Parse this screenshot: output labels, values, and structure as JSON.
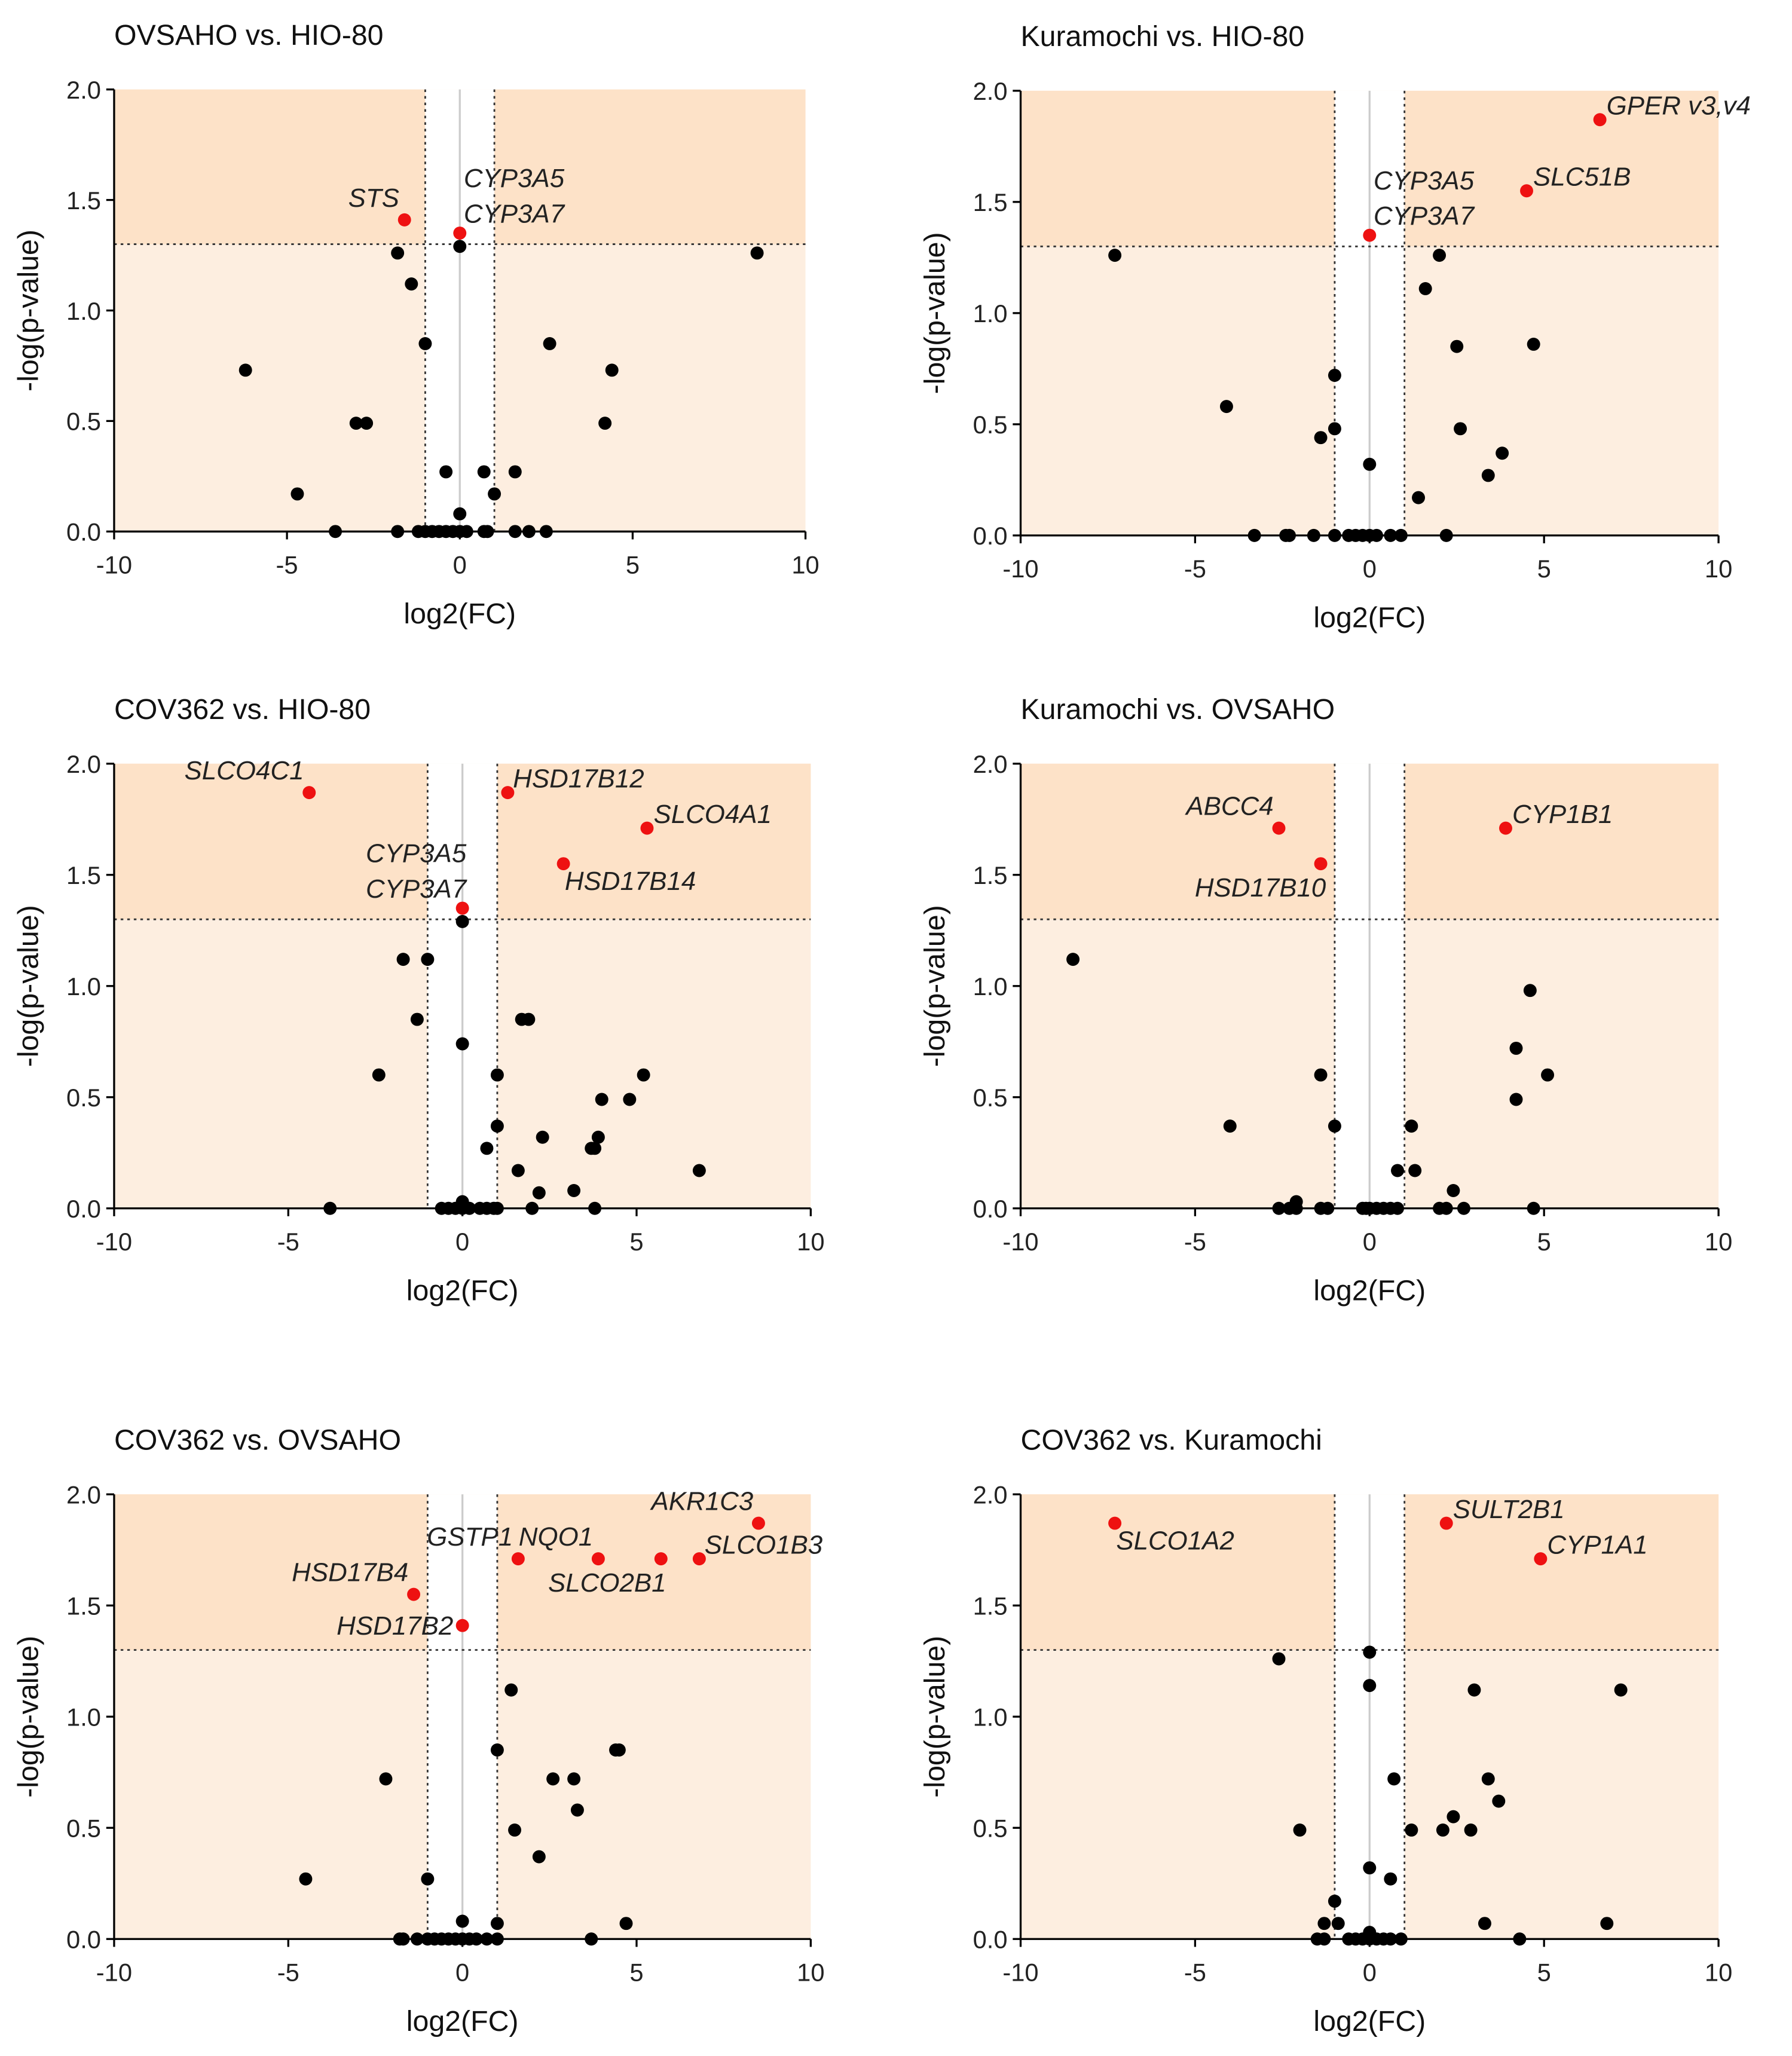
{
  "colors": {
    "significant_region": "#fde2c8",
    "nonsignificant_region": "#fdeee0",
    "significant_point": "#ee1111",
    "point": "#000000",
    "zero_line": "#cccccc"
  },
  "chart_data": [
    {
      "type": "scatter",
      "title": "OVSAHO vs. HIO-80",
      "xlabel": "log2(FC)",
      "ylabel": "-log(p-value)",
      "xlim": [
        -10,
        10
      ],
      "ylim": [
        0,
        2
      ],
      "xticks": [
        "-10",
        "-5",
        "0",
        "5",
        "10"
      ],
      "yticks": [
        "0.0",
        "0.5",
        "1.0",
        "1.5",
        "2.0"
      ],
      "thresholds": {
        "fc": 1,
        "p": 1.3
      },
      "significant": [
        {
          "x": -1.6,
          "y": 1.41,
          "labels": [
            {
              "text": "STS",
              "pos": "above-left"
            }
          ]
        },
        {
          "x": 0,
          "y": 1.35,
          "labels": [
            {
              "text": "CYP3A5",
              "pos": "stack-top-right"
            },
            {
              "text": "CYP3A7",
              "pos": "stack-bottom-right"
            }
          ]
        }
      ],
      "points": [
        [
          -1.8,
          1.26
        ],
        [
          0,
          1.29
        ],
        [
          8.6,
          1.26
        ],
        [
          -1.4,
          1.12
        ],
        [
          -1.0,
          0.85
        ],
        [
          2.6,
          0.85
        ],
        [
          -6.2,
          0.73
        ],
        [
          4.4,
          0.73
        ],
        [
          -3.0,
          0.49
        ],
        [
          -2.7,
          0.49
        ],
        [
          4.2,
          0.49
        ],
        [
          -0.4,
          0.27
        ],
        [
          0.7,
          0.27
        ],
        [
          1.6,
          0.27
        ],
        [
          -4.7,
          0.17
        ],
        [
          1.0,
          0.17
        ],
        [
          0,
          0.08
        ],
        [
          -3.6,
          0
        ],
        [
          -1.8,
          0
        ],
        [
          -1.2,
          0
        ],
        [
          -1.0,
          0
        ],
        [
          -0.8,
          0
        ],
        [
          -0.6,
          0
        ],
        [
          -0.4,
          0
        ],
        [
          -0.2,
          0
        ],
        [
          0,
          0
        ],
        [
          0.2,
          0
        ],
        [
          0.7,
          0
        ],
        [
          0.8,
          0
        ],
        [
          1.6,
          0
        ],
        [
          2.0,
          0
        ],
        [
          2.5,
          0
        ]
      ]
    },
    {
      "type": "scatter",
      "title": "Kuramochi vs. HIO-80",
      "xlabel": "log2(FC)",
      "ylabel": "-log(p-value)",
      "xlim": [
        -10,
        10
      ],
      "ylim": [
        0,
        2
      ],
      "xticks": [
        "-10",
        "-5",
        "0",
        "5",
        "10"
      ],
      "yticks": [
        "0.0",
        "0.5",
        "1.0",
        "1.5",
        "2.0"
      ],
      "thresholds": {
        "fc": 1,
        "p": 1.3
      },
      "significant": [
        {
          "x": 6.6,
          "y": 1.87,
          "labels": [
            {
              "text": "GPER v3,v4",
              "pos": "above-right"
            }
          ]
        },
        {
          "x": 4.5,
          "y": 1.55,
          "labels": [
            {
              "text": "SLC51B",
              "pos": "above-right"
            }
          ]
        },
        {
          "x": 0,
          "y": 1.35,
          "labels": [
            {
              "text": "CYP3A5",
              "pos": "stack-top-right"
            },
            {
              "text": "CYP3A7",
              "pos": "stack-bottom-right"
            }
          ]
        }
      ],
      "points": [
        [
          -7.3,
          1.26
        ],
        [
          2.0,
          1.26
        ],
        [
          1.6,
          1.11
        ],
        [
          2.5,
          0.85
        ],
        [
          4.7,
          0.86
        ],
        [
          -1.0,
          0.72
        ],
        [
          -4.1,
          0.58
        ],
        [
          -1.0,
          0.48
        ],
        [
          2.6,
          0.48
        ],
        [
          -1.4,
          0.44
        ],
        [
          3.8,
          0.37
        ],
        [
          0,
          0.32
        ],
        [
          3.4,
          0.27
        ],
        [
          1.4,
          0.17
        ],
        [
          -3.3,
          0
        ],
        [
          -2.4,
          0
        ],
        [
          -2.3,
          0
        ],
        [
          -1.6,
          0
        ],
        [
          -1.0,
          0
        ],
        [
          -0.6,
          0
        ],
        [
          -0.4,
          0
        ],
        [
          -0.2,
          0
        ],
        [
          0,
          0
        ],
        [
          0.2,
          0
        ],
        [
          0.6,
          0
        ],
        [
          0.9,
          0
        ],
        [
          2.2,
          0
        ]
      ]
    },
    {
      "type": "scatter",
      "title": "COV362 vs. HIO-80",
      "xlabel": "log2(FC)",
      "ylabel": "-log(p-value)",
      "xlim": [
        -10,
        10
      ],
      "ylim": [
        0,
        2
      ],
      "xticks": [
        "-10",
        "-5",
        "0",
        "5",
        "10"
      ],
      "yticks": [
        "0.0",
        "0.5",
        "1.0",
        "1.5",
        "2.0"
      ],
      "thresholds": {
        "fc": 1,
        "p": 1.3
      },
      "significant": [
        {
          "x": -4.4,
          "y": 1.87,
          "labels": [
            {
              "text": "SLCO4C1",
              "pos": "above-left"
            }
          ]
        },
        {
          "x": 1.3,
          "y": 1.87,
          "labels": [
            {
              "text": "HSD17B12",
              "pos": "right"
            }
          ]
        },
        {
          "x": 5.3,
          "y": 1.71,
          "labels": [
            {
              "text": "SLCO4A1",
              "pos": "above-right"
            }
          ]
        },
        {
          "x": 2.9,
          "y": 1.55,
          "labels": [
            {
              "text": "HSD17B14",
              "pos": "below-right"
            }
          ]
        },
        {
          "x": 0,
          "y": 1.35,
          "labels": [
            {
              "text": "CYP3A5",
              "pos": "stack-top-left"
            },
            {
              "text": "CYP3A7",
              "pos": "stack-bottom-left"
            }
          ]
        }
      ],
      "points": [
        [
          0,
          1.29
        ],
        [
          -1.7,
          1.12
        ],
        [
          -1.0,
          1.12
        ],
        [
          -1.3,
          0.85
        ],
        [
          1.7,
          0.85
        ],
        [
          1.9,
          0.85
        ],
        [
          0,
          0.74
        ],
        [
          -2.4,
          0.6
        ],
        [
          1.0,
          0.6
        ],
        [
          5.2,
          0.6
        ],
        [
          4.0,
          0.49
        ],
        [
          4.8,
          0.49
        ],
        [
          1.0,
          0.37
        ],
        [
          2.3,
          0.32
        ],
        [
          3.9,
          0.32
        ],
        [
          0.7,
          0.27
        ],
        [
          3.8,
          0.27
        ],
        [
          3.7,
          0.27
        ],
        [
          1.6,
          0.17
        ],
        [
          6.8,
          0.17
        ],
        [
          3.2,
          0.08
        ],
        [
          2.2,
          0.07
        ],
        [
          0,
          0.03
        ],
        [
          -3.8,
          0
        ],
        [
          -0.6,
          0
        ],
        [
          -0.4,
          0
        ],
        [
          -0.2,
          0
        ],
        [
          0,
          0
        ],
        [
          0.2,
          0
        ],
        [
          0.5,
          0
        ],
        [
          0.7,
          0
        ],
        [
          0.9,
          0
        ],
        [
          1.0,
          0
        ],
        [
          2.0,
          0
        ],
        [
          3.8,
          0
        ]
      ]
    },
    {
      "type": "scatter",
      "title": "Kuramochi vs. OVSAHO",
      "xlabel": "log2(FC)",
      "ylabel": "-log(p-value)",
      "xlim": [
        -10,
        10
      ],
      "ylim": [
        0,
        2
      ],
      "xticks": [
        "-10",
        "-5",
        "0",
        "5",
        "10"
      ],
      "yticks": [
        "0.0",
        "0.5",
        "1.0",
        "1.5",
        "2.0"
      ],
      "thresholds": {
        "fc": 1,
        "p": 1.3
      },
      "significant": [
        {
          "x": -2.6,
          "y": 1.71,
          "labels": [
            {
              "text": "ABCC4",
              "pos": "above-left"
            }
          ]
        },
        {
          "x": -1.4,
          "y": 1.55,
          "labels": [
            {
              "text": "HSD17B10",
              "pos": "below-left"
            }
          ]
        },
        {
          "x": 3.9,
          "y": 1.71,
          "labels": [
            {
              "text": "CYP1B1",
              "pos": "above-right"
            }
          ]
        }
      ],
      "points": [
        [
          -8.5,
          1.12
        ],
        [
          4.6,
          0.98
        ],
        [
          4.2,
          0.72
        ],
        [
          -1.4,
          0.6
        ],
        [
          5.1,
          0.6
        ],
        [
          4.2,
          0.49
        ],
        [
          -4.0,
          0.37
        ],
        [
          -1.0,
          0.37
        ],
        [
          1.2,
          0.37
        ],
        [
          0.8,
          0.17
        ],
        [
          1.3,
          0.17
        ],
        [
          2.4,
          0.08
        ],
        [
          -2.1,
          0.03
        ],
        [
          -2.6,
          0
        ],
        [
          -2.3,
          0
        ],
        [
          -2.1,
          0
        ],
        [
          -1.4,
          0
        ],
        [
          -1.2,
          0
        ],
        [
          -0.2,
          0
        ],
        [
          -0.1,
          0
        ],
        [
          0,
          0
        ],
        [
          0.2,
          0
        ],
        [
          0.4,
          0
        ],
        [
          0.6,
          0
        ],
        [
          0.8,
          0
        ],
        [
          2.0,
          0
        ],
        [
          2.2,
          0
        ],
        [
          2.7,
          0
        ],
        [
          4.7,
          0
        ]
      ]
    },
    {
      "type": "scatter",
      "title": "COV362 vs. OVSAHO",
      "xlabel": "log2(FC)",
      "ylabel": "-log(p-value)",
      "xlim": [
        -10,
        10
      ],
      "ylim": [
        0,
        2
      ],
      "xticks": [
        "-10",
        "-5",
        "0",
        "5",
        "10"
      ],
      "yticks": [
        "0.0",
        "0.5",
        "1.0",
        "1.5",
        "2.0"
      ],
      "thresholds": {
        "fc": 1,
        "p": 1.3
      },
      "significant": [
        {
          "x": 8.5,
          "y": 1.87,
          "labels": [
            {
              "text": "AKR1C3",
              "pos": "above-left"
            }
          ]
        },
        {
          "x": 1.6,
          "y": 1.71,
          "labels": [
            {
              "text": "GSTP1",
              "pos": "above-left"
            }
          ]
        },
        {
          "x": 3.9,
          "y": 1.71,
          "labels": [
            {
              "text": "NQO1",
              "pos": "above-left"
            }
          ]
        },
        {
          "x": 6.8,
          "y": 1.71,
          "labels": [
            {
              "text": "SLCO1B3",
              "pos": "right"
            }
          ]
        },
        {
          "x": 5.7,
          "y": 1.71,
          "labels": [
            {
              "text": "SLCO2B1",
              "pos": "below-left"
            }
          ]
        },
        {
          "x": -1.4,
          "y": 1.55,
          "labels": [
            {
              "text": "HSD17B4",
              "pos": "above-left"
            }
          ]
        },
        {
          "x": 0,
          "y": 1.41,
          "labels": [
            {
              "text": "HSD17B2",
              "pos": "left"
            }
          ]
        }
      ],
      "points": [
        [
          1.4,
          1.12
        ],
        [
          1.0,
          0.85
        ],
        [
          4.4,
          0.85
        ],
        [
          4.5,
          0.85
        ],
        [
          -2.2,
          0.72
        ],
        [
          2.6,
          0.72
        ],
        [
          3.2,
          0.72
        ],
        [
          3.3,
          0.58
        ],
        [
          1.5,
          0.49
        ],
        [
          2.2,
          0.37
        ],
        [
          -4.5,
          0.27
        ],
        [
          -1.0,
          0.27
        ],
        [
          4.7,
          0.07
        ],
        [
          1.0,
          0.07
        ],
        [
          0,
          0.08
        ],
        [
          -1.8,
          0
        ],
        [
          -1.7,
          0
        ],
        [
          -1.3,
          0
        ],
        [
          -1.0,
          0
        ],
        [
          -0.8,
          0
        ],
        [
          -0.6,
          0
        ],
        [
          -0.4,
          0
        ],
        [
          -0.2,
          0
        ],
        [
          0,
          0
        ],
        [
          0.2,
          0
        ],
        [
          0.4,
          0
        ],
        [
          0.7,
          0
        ],
        [
          1.0,
          0
        ],
        [
          3.7,
          0
        ]
      ]
    },
    {
      "type": "scatter",
      "title": "COV362 vs. Kuramochi",
      "xlabel": "log2(FC)",
      "ylabel": "-log(p-value)",
      "xlim": [
        -10,
        10
      ],
      "ylim": [
        0,
        2
      ],
      "xticks": [
        "-10",
        "-5",
        "0",
        "5",
        "10"
      ],
      "yticks": [
        "0.0",
        "0.5",
        "1.0",
        "1.5",
        "2.0"
      ],
      "thresholds": {
        "fc": 1,
        "p": 1.3
      },
      "significant": [
        {
          "x": -7.3,
          "y": 1.87,
          "labels": [
            {
              "text": "SLCO1A2",
              "pos": "below-right"
            }
          ]
        },
        {
          "x": 2.2,
          "y": 1.87,
          "labels": [
            {
              "text": "SULT2B1",
              "pos": "above-right"
            }
          ]
        },
        {
          "x": 4.9,
          "y": 1.71,
          "labels": [
            {
              "text": "CYP1A1",
              "pos": "above-right"
            }
          ]
        }
      ],
      "points": [
        [
          0,
          1.29
        ],
        [
          -2.6,
          1.26
        ],
        [
          0,
          1.14
        ],
        [
          3.0,
          1.12
        ],
        [
          7.2,
          1.12
        ],
        [
          0.7,
          0.72
        ],
        [
          3.4,
          0.72
        ],
        [
          2.4,
          0.55
        ],
        [
          3.7,
          0.62
        ],
        [
          -2.0,
          0.49
        ],
        [
          1.2,
          0.49
        ],
        [
          2.1,
          0.49
        ],
        [
          2.9,
          0.49
        ],
        [
          0,
          0.32
        ],
        [
          0.6,
          0.27
        ],
        [
          -1.0,
          0.17
        ],
        [
          6.8,
          0.07
        ],
        [
          3.3,
          0.07
        ],
        [
          -1.3,
          0.07
        ],
        [
          -0.9,
          0.07
        ],
        [
          0,
          0.03
        ],
        [
          -1.5,
          0
        ],
        [
          -1.3,
          0
        ],
        [
          -0.6,
          0
        ],
        [
          -0.4,
          0
        ],
        [
          -0.2,
          0
        ],
        [
          0,
          0
        ],
        [
          0.2,
          0
        ],
        [
          0.4,
          0
        ],
        [
          0.6,
          0
        ],
        [
          0.9,
          0
        ],
        [
          4.3,
          0
        ]
      ]
    }
  ]
}
